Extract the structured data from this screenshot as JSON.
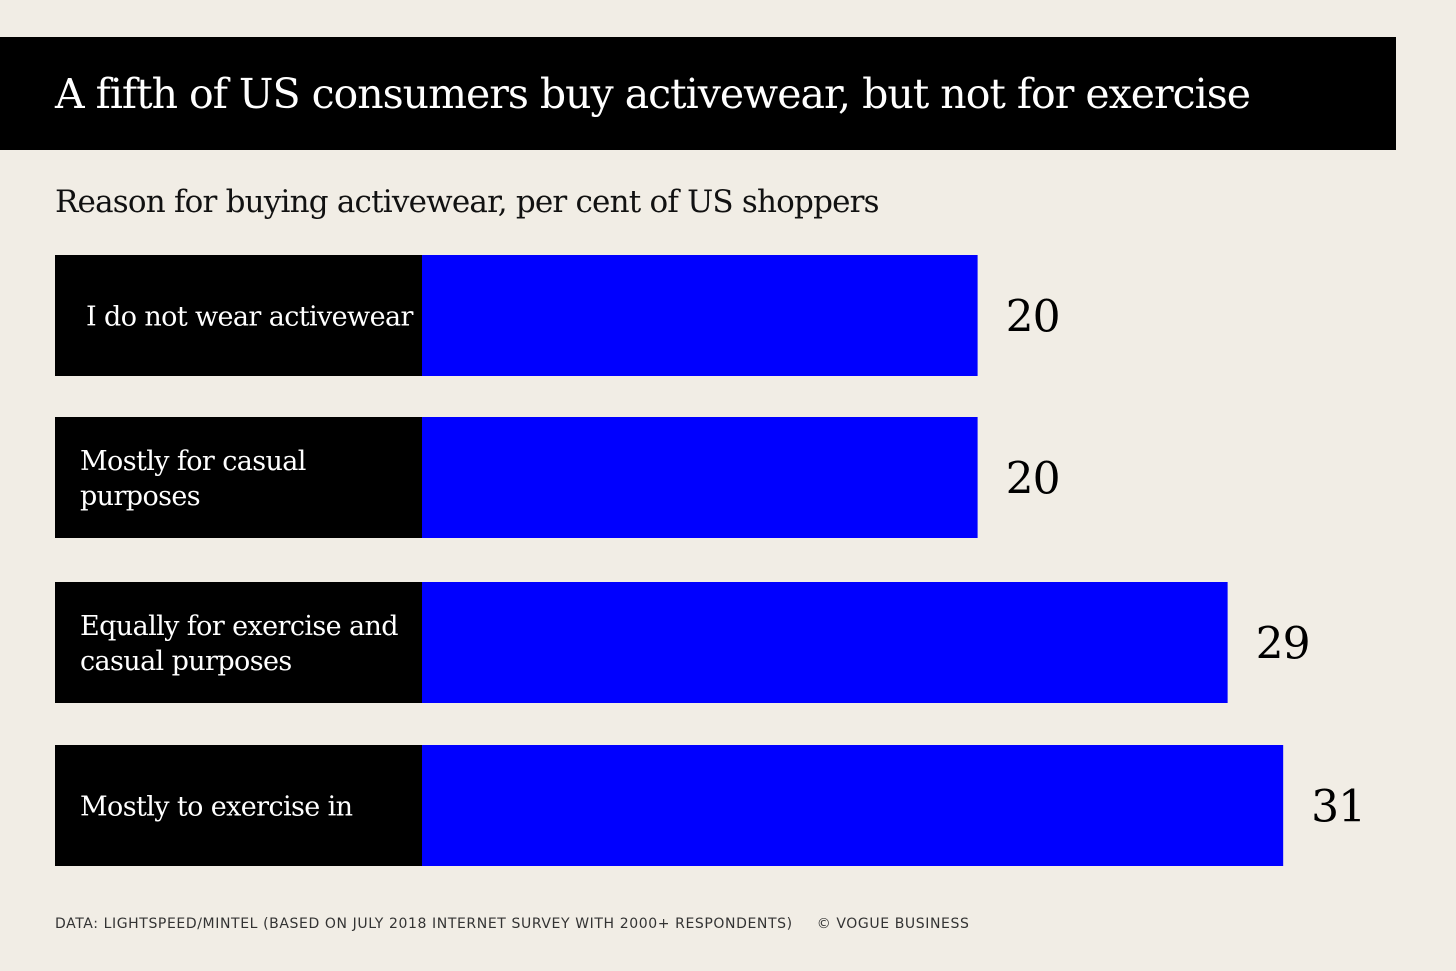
{
  "header": {
    "title": "A fifth of US consumers buy activewear, but not for exercise"
  },
  "subtitle": "Reason for buying activewear, per cent of US shoppers",
  "footer": {
    "source": "DATA: LIGHTSPEED/MINTEL (BASED ON JULY 2018 INTERNET SURVEY WITH 2000+ RESPONDENTS)",
    "credit": "© VOGUE BUSINESS"
  },
  "colors": {
    "bar": "#0000ff",
    "label_background": "#000000",
    "page_background": "#f1ede5"
  },
  "chart_data": {
    "type": "bar",
    "orientation": "horizontal",
    "title": "A fifth of US consumers buy activewear, but not for exercise",
    "subtitle": "Reason for buying activewear, per cent of US shoppers",
    "categories": [
      "I do not wear activewear",
      "Mostly for casual purposes",
      "Equally for exercise and casual purposes",
      "Mostly to exercise in"
    ],
    "category_lines": [
      [
        "I do not wear activewear"
      ],
      [
        "Mostly for casual",
        "purposes"
      ],
      [
        "Equally for exercise and",
        "casual purposes"
      ],
      [
        "Mostly to exercise in"
      ]
    ],
    "values": [
      20,
      20,
      29,
      31
    ],
    "xlim": [
      0,
      31
    ],
    "data_labels": [
      "20",
      "20",
      "29",
      "31"
    ],
    "grid": false,
    "legend": "none"
  }
}
